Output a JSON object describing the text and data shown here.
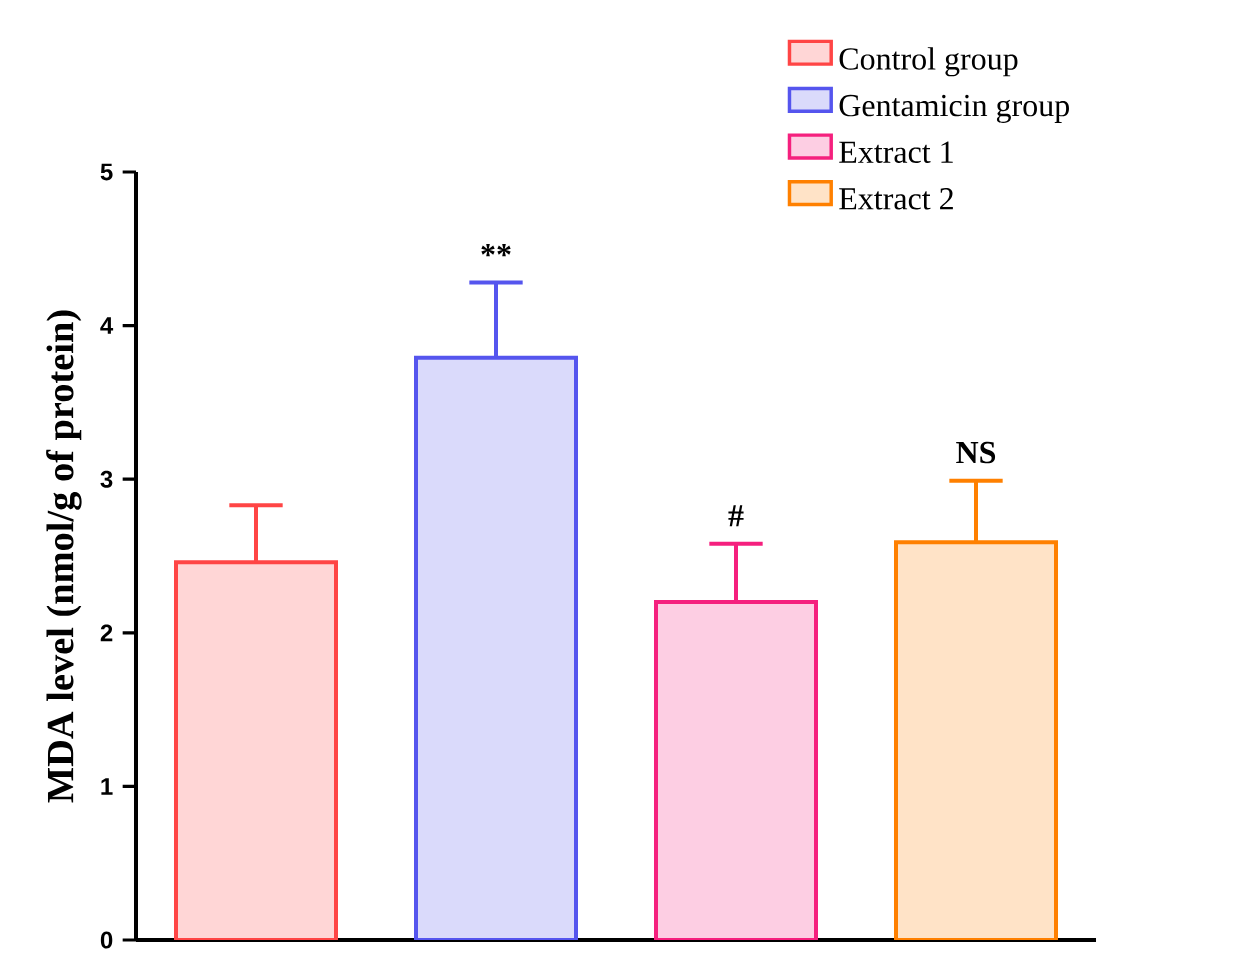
{
  "chart_data": {
    "type": "bar",
    "ylabel": "MDA level (nmol/g of protein)",
    "categories": [
      null,
      null,
      null,
      null
    ],
    "series": [
      {
        "name": "Control group",
        "color": "#ff4545",
        "values": [
          2.46,
          null,
          null,
          null
        ],
        "errors": [
          [
            2.46,
            2.83
          ],
          null,
          null,
          null
        ],
        "value_labels": [
          null,
          null,
          null,
          null
        ]
      },
      {
        "name": "Gentamicin group",
        "color": "#5555ee",
        "values": [
          null,
          3.79,
          null,
          null
        ],
        "errors": [
          null,
          [
            3.79,
            4.28
          ],
          null,
          null
        ],
        "value_labels": [
          null,
          "**",
          null,
          null
        ]
      },
      {
        "name": "Extract 1",
        "color": "#f5207e",
        "values": [
          null,
          null,
          2.2,
          null
        ],
        "errors": [
          null,
          null,
          [
            2.2,
            2.58
          ],
          null
        ],
        "value_labels": [
          null,
          null,
          "#",
          null
        ]
      },
      {
        "name": "Extract 2",
        "color": "#ff8000",
        "values": [
          null,
          null,
          null,
          2.59
        ],
        "errors": [
          null,
          null,
          null,
          [
            2.59,
            2.99
          ]
        ],
        "value_labels": [
          null,
          null,
          null,
          "NS"
        ]
      }
    ],
    "ylim": [
      0,
      5
    ],
    "yticks": [
      0,
      1,
      2,
      3,
      4,
      5
    ],
    "grid": false,
    "legend": "top right"
  }
}
